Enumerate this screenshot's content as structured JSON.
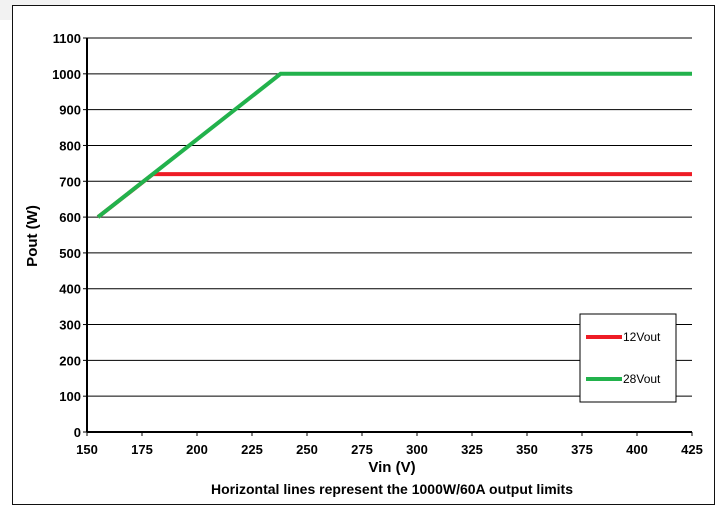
{
  "chart_data": {
    "type": "line",
    "title": "",
    "xlabel": "Vin (V)",
    "ylabel": "Pout (W)",
    "caption": "Horizontal lines represent the 1000W/60A output limits",
    "xlim": [
      150,
      425
    ],
    "ylim": [
      0,
      1100
    ],
    "x_ticks": [
      150,
      175,
      200,
      225,
      250,
      275,
      300,
      325,
      350,
      375,
      400,
      425
    ],
    "y_ticks": [
      0,
      100,
      200,
      300,
      400,
      500,
      600,
      700,
      800,
      900,
      1000,
      1100
    ],
    "grid": "horizontal",
    "legend_position": "bottom-right",
    "series": [
      {
        "name": "12Vout",
        "color": "#ee1c25",
        "points": [
          [
            155,
            600
          ],
          [
            180,
            720
          ],
          [
            425,
            720
          ]
        ]
      },
      {
        "name": "28Vout",
        "color": "#22b24c",
        "points": [
          [
            155,
            600
          ],
          [
            238,
            1000
          ],
          [
            425,
            1000
          ]
        ]
      }
    ]
  }
}
